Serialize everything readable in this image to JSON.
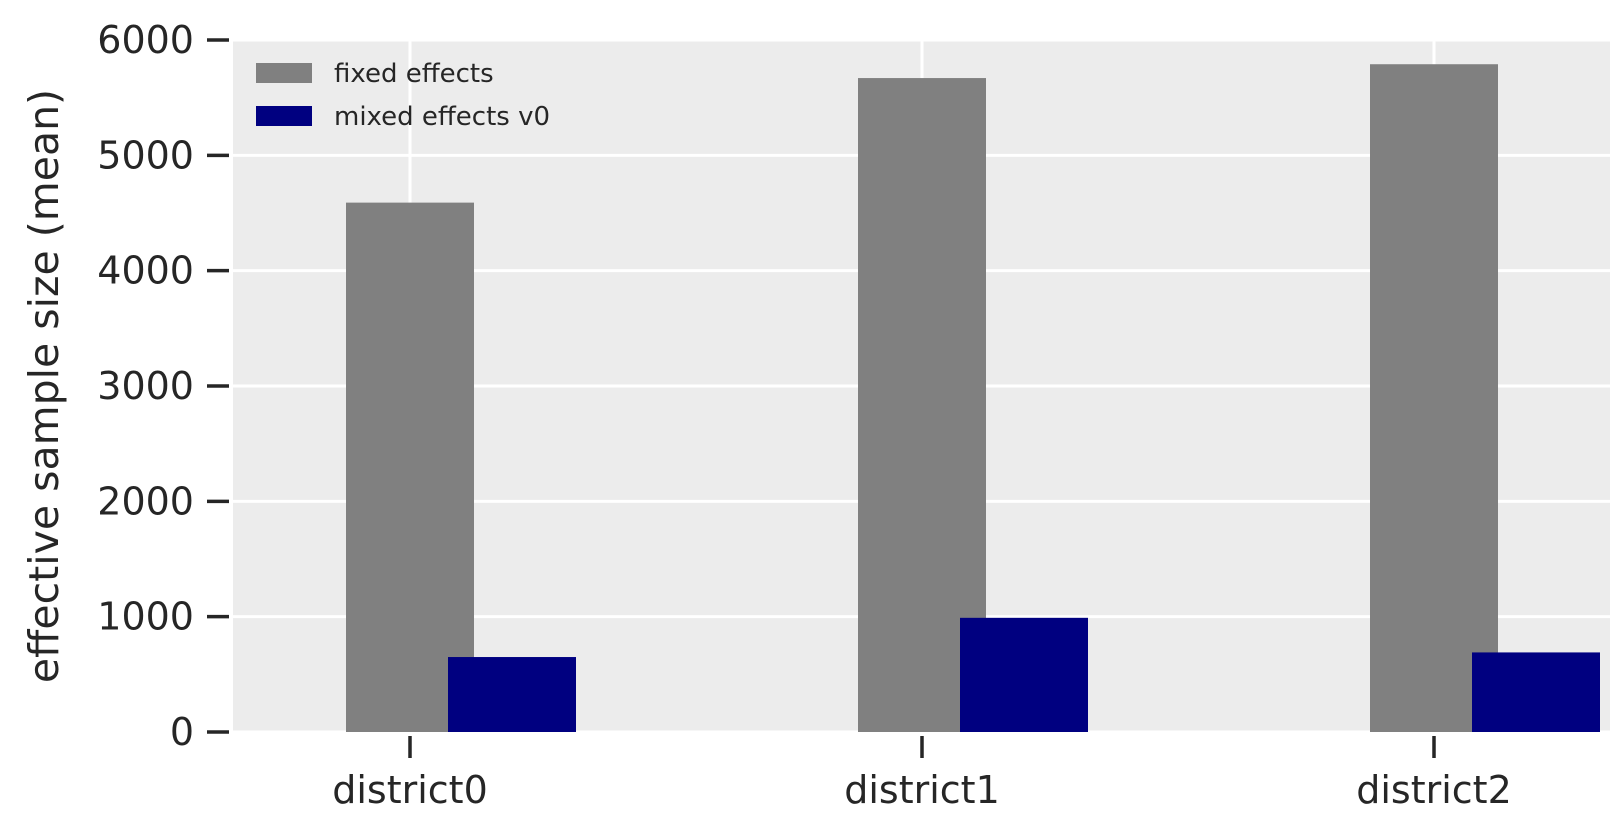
{
  "chart_data": {
    "type": "bar",
    "categories": [
      "district0",
      "district1",
      "district2"
    ],
    "series": [
      {
        "name": "fixed effects",
        "values": [
          4590,
          5670,
          5790
        ],
        "color": "#808080"
      },
      {
        "name": "mixed effects v0",
        "values": [
          650,
          990,
          690
        ],
        "color": "#000080"
      }
    ],
    "xlabel": "",
    "ylabel": "effective sample size (mean)",
    "ylim": [
      0,
      6000
    ],
    "yticks": [
      0,
      1000,
      2000,
      3000,
      4000,
      5000,
      6000
    ],
    "grid": true,
    "background": "#ececec",
    "legend_position": "top-left"
  }
}
